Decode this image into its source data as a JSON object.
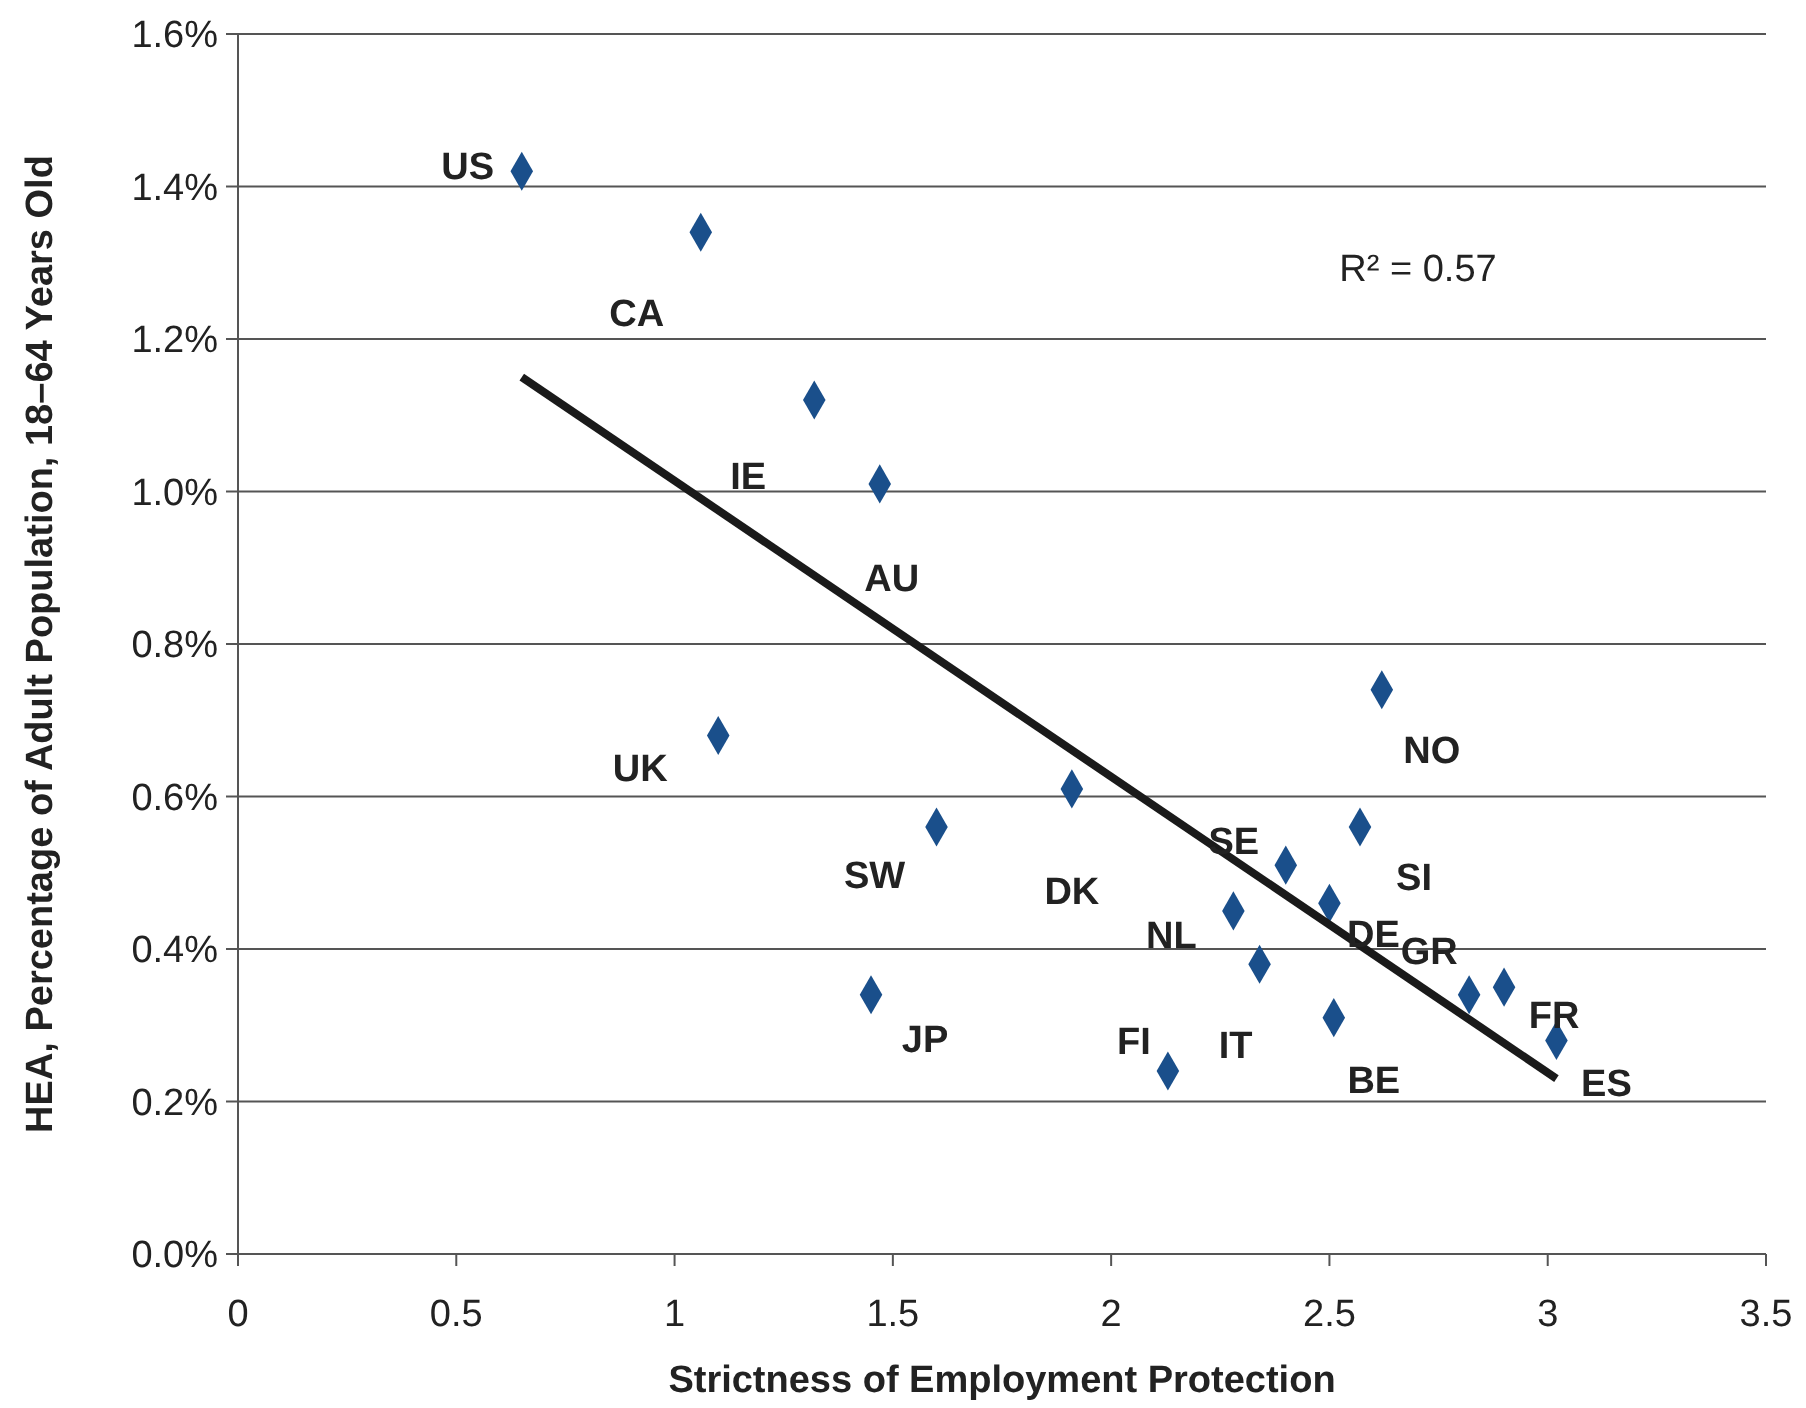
{
  "chart_data": {
    "type": "scatter",
    "xlabel": "Strictness of Employment Protection",
    "ylabel": "HEA, Percentage of Adult Population, 18–64 Years Old",
    "xlim": [
      0,
      3.5
    ],
    "xticks": [
      0,
      0.5,
      1,
      1.5,
      2,
      2.5,
      3,
      3.5
    ],
    "ylim": [
      0,
      1.6
    ],
    "yticks": [
      {
        "value": 0,
        "label": "0.0%"
      },
      {
        "value": 0.2,
        "label": "0.2%"
      },
      {
        "value": 0.4,
        "label": "0.4%"
      },
      {
        "value": 0.6,
        "label": "0.6%"
      },
      {
        "value": 0.8,
        "label": "0.8%"
      },
      {
        "value": 1.0,
        "label": "1.0%"
      },
      {
        "value": 1.2,
        "label": "1.2%"
      },
      {
        "value": 1.4,
        "label": "1.4%"
      },
      {
        "value": 1.6,
        "label": "1.6%"
      }
    ],
    "grid": "y",
    "series": [
      {
        "type": "scatter",
        "color": "#1a4f8b",
        "marker": "diamond",
        "x": [
          0.65,
          1.06,
          1.32,
          1.47,
          1.1,
          1.6,
          1.45,
          1.91,
          2.13,
          2.28,
          2.34,
          2.4,
          2.5,
          2.51,
          2.57,
          2.62,
          2.82,
          2.9,
          3.02
        ],
        "values": [
          1.42,
          1.34,
          1.12,
          1.01,
          0.68,
          0.56,
          0.34,
          0.61,
          0.24,
          0.45,
          0.38,
          0.51,
          0.46,
          0.31,
          0.56,
          0.74,
          0.34,
          0.35,
          0.28
        ]
      },
      {
        "type": "line",
        "color": "#1a1a1a",
        "marker": "none",
        "line_style": "solid",
        "x": [
          0.65,
          3.02
        ],
        "values": [
          1.15,
          0.23
        ]
      }
    ],
    "annotations": [
      {
        "text": "US",
        "x": 0.65,
        "y": 1.42
      },
      {
        "text": "CA",
        "x": 1.06,
        "y": 1.34
      },
      {
        "text": "IE",
        "x": 1.32,
        "y": 1.12
      },
      {
        "text": "AU",
        "x": 1.47,
        "y": 1.01
      },
      {
        "text": "UK",
        "x": 1.1,
        "y": 0.68
      },
      {
        "text": "SW",
        "x": 1.6,
        "y": 0.56
      },
      {
        "text": "JP",
        "x": 1.45,
        "y": 0.34
      },
      {
        "text": "DK",
        "x": 1.91,
        "y": 0.61
      },
      {
        "text": "FI",
        "x": 2.13,
        "y": 0.24
      },
      {
        "text": "NL",
        "x": 2.28,
        "y": 0.45
      },
      {
        "text": "IT",
        "x": 2.34,
        "y": 0.38
      },
      {
        "text": "SE",
        "x": 2.4,
        "y": 0.51
      },
      {
        "text": "DE",
        "x": 2.5,
        "y": 0.46
      },
      {
        "text": "BE",
        "x": 2.51,
        "y": 0.31
      },
      {
        "text": "SI",
        "x": 2.57,
        "y": 0.56
      },
      {
        "text": "NO",
        "x": 2.62,
        "y": 0.74
      },
      {
        "text": "GR",
        "x": 2.82,
        "y": 0.34
      },
      {
        "text": "FR",
        "x": 2.9,
        "y": 0.35
      },
      {
        "text": "ES",
        "x": 3.02,
        "y": 0.28
      },
      "R² = 0.57"
    ]
  }
}
